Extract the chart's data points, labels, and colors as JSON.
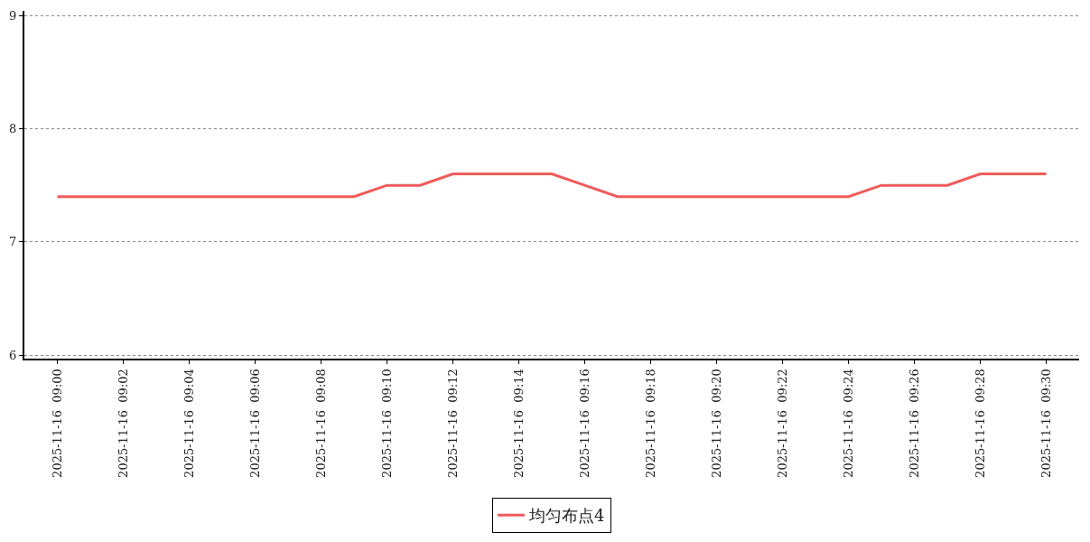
{
  "chart_data": {
    "type": "line",
    "x": [
      "2025-11-16T09:00",
      "2025-11-16T09:01",
      "2025-11-16T09:02",
      "2025-11-16T09:03",
      "2025-11-16T09:04",
      "2025-11-16T09:05",
      "2025-11-16T09:06",
      "2025-11-16T09:07",
      "2025-11-16T09:08",
      "2025-11-16T09:09",
      "2025-11-16T09:10",
      "2025-11-16T09:11",
      "2025-11-16T09:12",
      "2025-11-16T09:13",
      "2025-11-16T09:14",
      "2025-11-16T09:15",
      "2025-11-16T09:16",
      "2025-11-16T09:17",
      "2025-11-16T09:18",
      "2025-11-16T09:19",
      "2025-11-16T09:20",
      "2025-11-16T09:21",
      "2025-11-16T09:22",
      "2025-11-16T09:23",
      "2025-11-16T09:24",
      "2025-11-16T09:25",
      "2025-11-16T09:26",
      "2025-11-16T09:27",
      "2025-11-16T09:28",
      "2025-11-16T09:29",
      "2025-11-16T09:30"
    ],
    "series": [
      {
        "name": "均匀布点4",
        "color": "#ef5b5b",
        "values": [
          7.4,
          7.4,
          7.4,
          7.4,
          7.4,
          7.4,
          7.4,
          7.4,
          7.4,
          7.4,
          7.5,
          7.5,
          7.6,
          7.6,
          7.6,
          7.6,
          7.5,
          7.4,
          7.4,
          7.4,
          7.4,
          7.4,
          7.4,
          7.4,
          7.4,
          7.5,
          7.5,
          7.5,
          7.6,
          7.6,
          7.6
        ]
      }
    ],
    "xlim": [
      "2025-11-16T08:59",
      "2025-11-16T09:31"
    ],
    "xticks": [
      {
        "value": "2025-11-16T09:00",
        "label": "2025-11-16  09:00"
      },
      {
        "value": "2025-11-16T09:02",
        "label": "2025-11-16  09:02"
      },
      {
        "value": "2025-11-16T09:04",
        "label": "2025-11-16  09:04"
      },
      {
        "value": "2025-11-16T09:06",
        "label": "2025-11-16  09:06"
      },
      {
        "value": "2025-11-16T09:08",
        "label": "2025-11-16  09:08"
      },
      {
        "value": "2025-11-16T09:10",
        "label": "2025-11-16  09:10"
      },
      {
        "value": "2025-11-16T09:12",
        "label": "2025-11-16  09:12"
      },
      {
        "value": "2025-11-16T09:14",
        "label": "2025-11-16  09:14"
      },
      {
        "value": "2025-11-16T09:16",
        "label": "2025-11-16  09:16"
      },
      {
        "value": "2025-11-16T09:18",
        "label": "2025-11-16  09:18"
      },
      {
        "value": "2025-11-16T09:20",
        "label": "2025-11-16  09:20"
      },
      {
        "value": "2025-11-16T09:22",
        "label": "2025-11-16  09:22"
      },
      {
        "value": "2025-11-16T09:24",
        "label": "2025-11-16  09:24"
      },
      {
        "value": "2025-11-16T09:26",
        "label": "2025-11-16  09:26"
      },
      {
        "value": "2025-11-16T09:28",
        "label": "2025-11-16  09:28"
      },
      {
        "value": "2025-11-16T09:30",
        "label": "2025-11-16  09:30"
      }
    ],
    "ylim": [
      5.97,
      9.04
    ],
    "yticks": [
      6,
      7,
      8,
      9
    ],
    "grid": "y",
    "legend": "bottom",
    "marker": "none",
    "line_style": "solid"
  }
}
